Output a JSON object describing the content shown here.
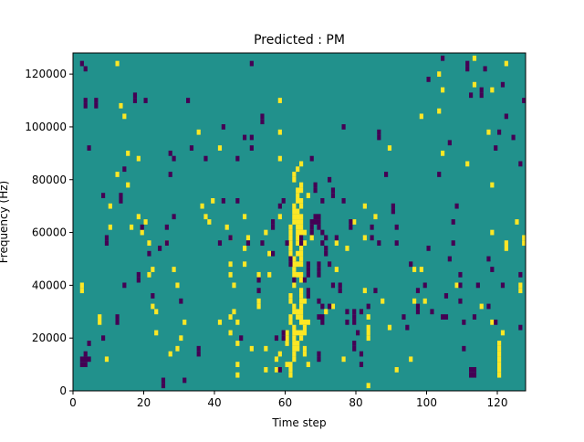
{
  "chart_data": {
    "type": "heatmap",
    "title": "Predicted : PM",
    "xlabel": "Time step",
    "ylabel": "Frequency (Hz)",
    "xlim": [
      0,
      128
    ],
    "ylim": [
      0,
      128000
    ],
    "x_ticks": [
      0,
      20,
      40,
      60,
      80,
      100,
      120
    ],
    "y_ticks": [
      0,
      20000,
      40000,
      60000,
      80000,
      100000,
      120000
    ],
    "grid": false,
    "legend": "none",
    "colors": {
      "background": "#21918c",
      "high": "#fde725",
      "low": "#440154"
    },
    "cells_high": [
      [
        2,
        38000
      ],
      [
        2,
        40000
      ],
      [
        7,
        26000
      ],
      [
        7,
        28000
      ],
      [
        9,
        12000
      ],
      [
        10,
        70000
      ],
      [
        10,
        62000
      ],
      [
        12,
        82000
      ],
      [
        12,
        124000
      ],
      [
        13,
        108000
      ],
      [
        14,
        104000
      ],
      [
        15,
        78000
      ],
      [
        15,
        90000
      ],
      [
        16,
        62000
      ],
      [
        18,
        88000
      ],
      [
        18,
        66000
      ],
      [
        19,
        60000
      ],
      [
        20,
        64000
      ],
      [
        21,
        56000
      ],
      [
        21,
        44000
      ],
      [
        22,
        46000
      ],
      [
        22,
        32000
      ],
      [
        23,
        30000
      ],
      [
        23,
        22000
      ],
      [
        26,
        56000
      ],
      [
        27,
        14000
      ],
      [
        28,
        46000
      ],
      [
        29,
        16000
      ],
      [
        29,
        40000
      ],
      [
        30,
        20000
      ],
      [
        31,
        26000
      ],
      [
        35,
        98000
      ],
      [
        36,
        70000
      ],
      [
        37,
        66000
      ],
      [
        38,
        64000
      ],
      [
        39,
        72000
      ],
      [
        41,
        92000
      ],
      [
        41,
        26000
      ],
      [
        43,
        62000
      ],
      [
        44,
        58000
      ],
      [
        44,
        48000
      ],
      [
        44,
        44000
      ],
      [
        44,
        28000
      ],
      [
        44,
        22000
      ],
      [
        45,
        30000
      ],
      [
        45,
        40000
      ],
      [
        46,
        26000
      ],
      [
        46,
        18000
      ],
      [
        46,
        10000
      ],
      [
        46,
        6000
      ],
      [
        48,
        54000
      ],
      [
        48,
        66000
      ],
      [
        48,
        48000
      ],
      [
        49,
        58000
      ],
      [
        50,
        16000
      ],
      [
        52,
        32000
      ],
      [
        52,
        44000
      ],
      [
        52,
        34000
      ],
      [
        54,
        60000
      ],
      [
        54,
        16000
      ],
      [
        54,
        8000
      ],
      [
        55,
        44000
      ],
      [
        55,
        52000
      ],
      [
        57,
        12000
      ],
      [
        57,
        8000
      ],
      [
        58,
        14000
      ],
      [
        58,
        66000
      ],
      [
        58,
        88000
      ],
      [
        58,
        98000
      ],
      [
        58,
        110000
      ],
      [
        60,
        10000
      ],
      [
        60,
        18000
      ],
      [
        60,
        20000
      ],
      [
        60,
        22000
      ],
      [
        61,
        6000
      ],
      [
        61,
        8000
      ],
      [
        61,
        10000
      ],
      [
        62,
        12000
      ],
      [
        62,
        14000
      ],
      [
        62,
        16000
      ],
      [
        62,
        18000
      ],
      [
        62,
        20000
      ],
      [
        62,
        22000
      ],
      [
        62,
        24000
      ],
      [
        61,
        26000
      ],
      [
        61,
        28000
      ],
      [
        62,
        30000
      ],
      [
        62,
        32000
      ],
      [
        61,
        34000
      ],
      [
        61,
        36000
      ],
      [
        62,
        40000
      ],
      [
        62,
        44000
      ],
      [
        62,
        46000
      ],
      [
        62,
        48000
      ],
      [
        62,
        50000
      ],
      [
        61,
        52000
      ],
      [
        61,
        54000
      ],
      [
        61,
        56000
      ],
      [
        61,
        58000
      ],
      [
        61,
        60000
      ],
      [
        61,
        62000
      ],
      [
        62,
        64000
      ],
      [
        62,
        66000
      ],
      [
        62,
        68000
      ],
      [
        62,
        70000
      ],
      [
        63,
        72000
      ],
      [
        63,
        74000
      ],
      [
        63,
        76000
      ],
      [
        62,
        80000
      ],
      [
        63,
        84000
      ],
      [
        62,
        82000
      ],
      [
        63,
        44000
      ],
      [
        63,
        48000
      ],
      [
        63,
        52000
      ],
      [
        63,
        56000
      ],
      [
        63,
        58000
      ],
      [
        63,
        60000
      ],
      [
        63,
        62000
      ],
      [
        63,
        64000
      ],
      [
        63,
        66000
      ],
      [
        63,
        68000
      ],
      [
        63,
        28000
      ],
      [
        63,
        30000
      ],
      [
        63,
        22000
      ],
      [
        63,
        16000
      ],
      [
        63,
        18000
      ],
      [
        64,
        22000
      ],
      [
        64,
        20000
      ],
      [
        64,
        26000
      ],
      [
        64,
        28000
      ],
      [
        64,
        30000
      ],
      [
        64,
        32000
      ],
      [
        64,
        34000
      ],
      [
        64,
        36000
      ],
      [
        64,
        38000
      ],
      [
        64,
        42000
      ],
      [
        64,
        44000
      ],
      [
        64,
        48000
      ],
      [
        64,
        50000
      ],
      [
        64,
        52000
      ],
      [
        64,
        54000
      ],
      [
        64,
        60000
      ],
      [
        64,
        62000
      ],
      [
        64,
        64000
      ],
      [
        64,
        66000
      ],
      [
        64,
        70000
      ],
      [
        64,
        72000
      ],
      [
        64,
        76000
      ],
      [
        64,
        78000
      ],
      [
        64,
        86000
      ],
      [
        65,
        14000
      ],
      [
        65,
        16000
      ],
      [
        65,
        22000
      ],
      [
        65,
        24000
      ],
      [
        65,
        26000
      ],
      [
        65,
        34000
      ],
      [
        65,
        56000
      ],
      [
        65,
        60000
      ],
      [
        66,
        10000
      ],
      [
        66,
        26000
      ],
      [
        66,
        74000
      ],
      [
        67,
        58000
      ],
      [
        71,
        30000
      ],
      [
        73,
        32000
      ],
      [
        74,
        46000
      ],
      [
        74,
        56000
      ],
      [
        77,
        54000
      ],
      [
        76,
        12000
      ],
      [
        79,
        64000
      ],
      [
        82,
        38000
      ],
      [
        82,
        58000
      ],
      [
        82,
        70000
      ],
      [
        83,
        2000
      ],
      [
        83,
        20000
      ],
      [
        83,
        22000
      ],
      [
        83,
        24000
      ],
      [
        83,
        28000
      ],
      [
        85,
        66000
      ],
      [
        87,
        34000
      ],
      [
        89,
        24000
      ],
      [
        89,
        92000
      ],
      [
        91,
        8000
      ],
      [
        95,
        12000
      ],
      [
        96,
        34000
      ],
      [
        96,
        46000
      ],
      [
        98,
        46000
      ],
      [
        98,
        104000
      ],
      [
        99,
        34000
      ],
      [
        103,
        106000
      ],
      [
        103,
        120000
      ],
      [
        104,
        114000
      ],
      [
        104,
        90000
      ],
      [
        108,
        40000
      ],
      [
        111,
        86000
      ],
      [
        113,
        116000
      ],
      [
        113,
        126000
      ],
      [
        115,
        32000
      ],
      [
        118,
        60000
      ],
      [
        118,
        78000
      ],
      [
        118,
        114000
      ],
      [
        118,
        26000
      ],
      [
        120,
        6000
      ],
      [
        120,
        8000
      ],
      [
        120,
        10000
      ],
      [
        120,
        12000
      ],
      [
        120,
        14000
      ],
      [
        120,
        16000
      ],
      [
        120,
        18000
      ],
      [
        121,
        22000
      ],
      [
        122,
        54000
      ],
      [
        122,
        56000
      ],
      [
        122,
        124000
      ],
      [
        126,
        38000
      ],
      [
        126,
        40000
      ],
      [
        127,
        56000
      ],
      [
        127,
        58000
      ],
      [
        117,
        98000
      ],
      [
        125,
        64000
      ]
    ],
    "cells_low": [
      [
        2,
        10000
      ],
      [
        2,
        12000
      ],
      [
        3,
        10000
      ],
      [
        3,
        12000
      ],
      [
        3,
        14000
      ],
      [
        4,
        12000
      ],
      [
        4,
        18000
      ],
      [
        3,
        108000
      ],
      [
        3,
        110000
      ],
      [
        3,
        122000
      ],
      [
        2,
        124000
      ],
      [
        4,
        92000
      ],
      [
        6,
        108000
      ],
      [
        6,
        110000
      ],
      [
        8,
        20000
      ],
      [
        8,
        74000
      ],
      [
        9,
        58000
      ],
      [
        9,
        56000
      ],
      [
        12,
        26000
      ],
      [
        12,
        28000
      ],
      [
        13,
        74000
      ],
      [
        13,
        72000
      ],
      [
        14,
        84000
      ],
      [
        14,
        40000
      ],
      [
        17,
        110000
      ],
      [
        17,
        112000
      ],
      [
        18,
        44000
      ],
      [
        18,
        42000
      ],
      [
        19,
        62000
      ],
      [
        20,
        110000
      ],
      [
        21,
        52000
      ],
      [
        22,
        36000
      ],
      [
        24,
        54000
      ],
      [
        25,
        2000
      ],
      [
        25,
        4000
      ],
      [
        26,
        56000
      ],
      [
        26,
        62000
      ],
      [
        27,
        82000
      ],
      [
        27,
        90000
      ],
      [
        28,
        88000
      ],
      [
        28,
        66000
      ],
      [
        30,
        34000
      ],
      [
        31,
        4000
      ],
      [
        32,
        110000
      ],
      [
        33,
        92000
      ],
      [
        35,
        16000
      ],
      [
        35,
        14000
      ],
      [
        37,
        88000
      ],
      [
        41,
        56000
      ],
      [
        42,
        72000
      ],
      [
        42,
        100000
      ],
      [
        44,
        58000
      ],
      [
        46,
        72000
      ],
      [
        46,
        88000
      ],
      [
        47,
        20000
      ],
      [
        48,
        96000
      ],
      [
        49,
        56000
      ],
      [
        50,
        124000
      ],
      [
        50,
        96000
      ],
      [
        50,
        92000
      ],
      [
        52,
        42000
      ],
      [
        52,
        38000
      ],
      [
        53,
        56000
      ],
      [
        53,
        102000
      ],
      [
        53,
        104000
      ],
      [
        56,
        62000
      ],
      [
        56,
        64000
      ],
      [
        56,
        52000
      ],
      [
        57,
        20000
      ],
      [
        58,
        8000
      ],
      [
        58,
        70000
      ],
      [
        59,
        72000
      ],
      [
        59,
        20000
      ],
      [
        59,
        22000
      ],
      [
        60,
        56000
      ],
      [
        61,
        50000
      ],
      [
        61,
        48000
      ],
      [
        62,
        42000
      ],
      [
        64,
        56000
      ],
      [
        64,
        58000
      ],
      [
        65,
        42000
      ],
      [
        66,
        36000
      ],
      [
        66,
        38000
      ],
      [
        66,
        44000
      ],
      [
        66,
        46000
      ],
      [
        66,
        48000
      ],
      [
        67,
        60000
      ],
      [
        67,
        62000
      ],
      [
        67,
        64000
      ],
      [
        67,
        88000
      ],
      [
        68,
        64000
      ],
      [
        68,
        66000
      ],
      [
        68,
        76000
      ],
      [
        68,
        78000
      ],
      [
        69,
        28000
      ],
      [
        69,
        34000
      ],
      [
        69,
        44000
      ],
      [
        69,
        46000
      ],
      [
        69,
        48000
      ],
      [
        69,
        62000
      ],
      [
        69,
        64000
      ],
      [
        69,
        66000
      ],
      [
        69,
        12000
      ],
      [
        69,
        14000
      ],
      [
        70,
        26000
      ],
      [
        70,
        28000
      ],
      [
        70,
        32000
      ],
      [
        70,
        56000
      ],
      [
        70,
        60000
      ],
      [
        70,
        72000
      ],
      [
        71,
        58000
      ],
      [
        71,
        54000
      ],
      [
        71,
        52000
      ],
      [
        72,
        32000
      ],
      [
        72,
        48000
      ],
      [
        72,
        80000
      ],
      [
        73,
        76000
      ],
      [
        73,
        74000
      ],
      [
        73,
        40000
      ],
      [
        74,
        58000
      ],
      [
        75,
        38000
      ],
      [
        75,
        40000
      ],
      [
        76,
        72000
      ],
      [
        76,
        100000
      ],
      [
        77,
        30000
      ],
      [
        77,
        26000
      ],
      [
        78,
        64000
      ],
      [
        78,
        62000
      ],
      [
        79,
        26000
      ],
      [
        79,
        28000
      ],
      [
        79,
        30000
      ],
      [
        79,
        18000
      ],
      [
        79,
        16000
      ],
      [
        80,
        22000
      ],
      [
        81,
        30000
      ],
      [
        81,
        14000
      ],
      [
        81,
        10000
      ],
      [
        83,
        32000
      ],
      [
        84,
        62000
      ],
      [
        84,
        58000
      ],
      [
        85,
        38000
      ],
      [
        86,
        56000
      ],
      [
        86,
        96000
      ],
      [
        86,
        98000
      ],
      [
        88,
        82000
      ],
      [
        90,
        68000
      ],
      [
        90,
        70000
      ],
      [
        91,
        62000
      ],
      [
        91,
        56000
      ],
      [
        93,
        28000
      ],
      [
        94,
        24000
      ],
      [
        95,
        48000
      ],
      [
        97,
        30000
      ],
      [
        97,
        32000
      ],
      [
        97,
        38000
      ],
      [
        99,
        40000
      ],
      [
        100,
        54000
      ],
      [
        101,
        30000
      ],
      [
        103,
        82000
      ],
      [
        104,
        28000
      ],
      [
        105,
        36000
      ],
      [
        105,
        28000
      ],
      [
        106,
        50000
      ],
      [
        107,
        56000
      ],
      [
        107,
        64000
      ],
      [
        108,
        70000
      ],
      [
        109,
        34000
      ],
      [
        109,
        40000
      ],
      [
        109,
        44000
      ],
      [
        110,
        16000
      ],
      [
        110,
        26000
      ],
      [
        111,
        122000
      ],
      [
        111,
        124000
      ],
      [
        112,
        112000
      ],
      [
        112,
        6000
      ],
      [
        112,
        8000
      ],
      [
        113,
        6000
      ],
      [
        113,
        8000
      ],
      [
        113,
        28000
      ],
      [
        114,
        40000
      ],
      [
        115,
        112000
      ],
      [
        115,
        114000
      ],
      [
        117,
        32000
      ],
      [
        117,
        50000
      ],
      [
        119,
        26000
      ],
      [
        119,
        92000
      ],
      [
        121,
        116000
      ],
      [
        122,
        104000
      ],
      [
        124,
        96000
      ],
      [
        126,
        44000
      ],
      [
        126,
        24000
      ],
      [
        126,
        86000
      ],
      [
        127,
        110000
      ],
      [
        120,
        98000
      ],
      [
        121,
        40000
      ],
      [
        118,
        46000
      ],
      [
        106,
        94000
      ],
      [
        104,
        126000
      ],
      [
        116,
        122000
      ],
      [
        100,
        118000
      ]
    ]
  }
}
